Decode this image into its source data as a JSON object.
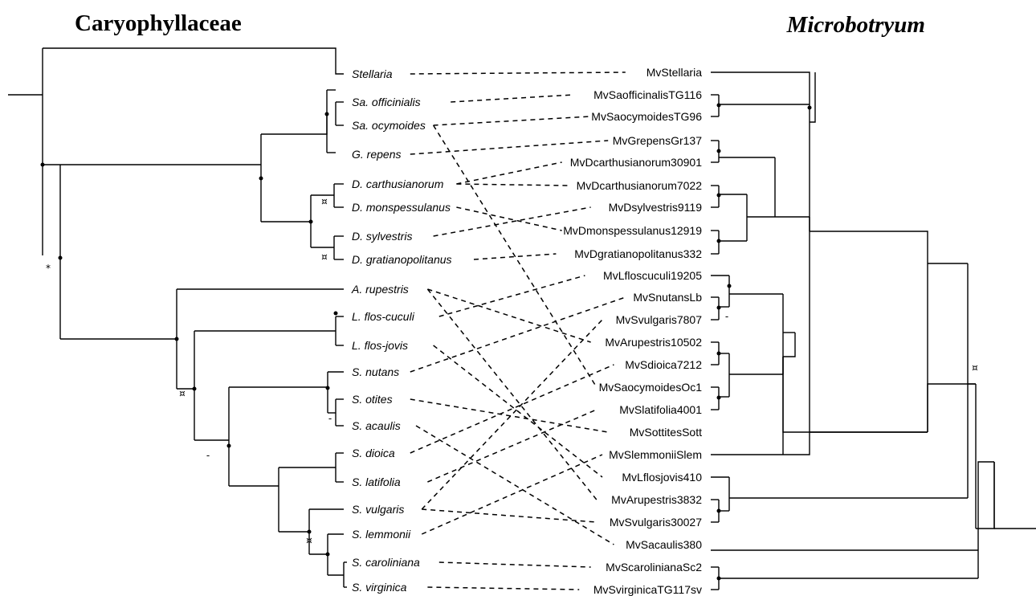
{
  "titles": {
    "left": "Caryophyllaceae",
    "right": "Microbotryum"
  },
  "host_taxa": [
    "Stellaria",
    "Sa. officinialis",
    "Sa. ocymoides",
    "G. repens",
    "D. carthusianorum",
    "D. monspessulanus",
    "D. sylvestris",
    "D. gratianopolitanus",
    "A. rupestris",
    "L. flos-cuculi",
    "L. flos-jovis",
    "S. nutans",
    "S. otites",
    "S. acaulis",
    "S. dioica",
    "S. latifolia",
    "S. vulgaris",
    "S. lemmonii",
    "S. caroliniana",
    "S. virginica"
  ],
  "parasite_taxa": [
    "MvStellaria",
    "MvSaofficinalisTG116",
    "MvSaocymoidesTG96",
    "MvGrepensGr137",
    "MvDcarthusianorum30901",
    "MvDcarthusianorum7022",
    "MvDsylvestris9119",
    "MvDmonspessulanus12919",
    "MvDgratianopolitanus332",
    "MvLfloscuculi19205",
    "MvSnutansLb",
    "MvSvulgaris7807",
    "MvArupestris10502",
    "MvSdioica7212",
    "MvSaocymoidesOc1",
    "MvSlatifolia4001",
    "MvSottitesSott",
    "MvSlemmoniiSlem",
    "MvLflosjovis410",
    "MvArupestris3832",
    "MvSvulgaris30027",
    "MvSacaulis380",
    "MvScarolinianaSc2",
    "MvSvirginicaTG117sv"
  ],
  "associations": [
    [
      "Stellaria",
      "MvStellaria"
    ],
    [
      "Sa. officinialis",
      "MvSaofficinalisTG116"
    ],
    [
      "Sa. ocymoides",
      "MvSaocymoidesTG96"
    ],
    [
      "Sa. ocymoides",
      "MvSaocymoidesOc1"
    ],
    [
      "G. repens",
      "MvGrepensGr137"
    ],
    [
      "D. carthusianorum",
      "MvDcarthusianorum30901"
    ],
    [
      "D. carthusianorum",
      "MvDcarthusianorum7022"
    ],
    [
      "D. monspessulanus",
      "MvDmonspessulanus12919"
    ],
    [
      "D. sylvestris",
      "MvDsylvestris9119"
    ],
    [
      "D. gratianopolitanus",
      "MvDgratianopolitanus332"
    ],
    [
      "A. rupestris",
      "MvArupestris10502"
    ],
    [
      "A. rupestris",
      "MvArupestris3832"
    ],
    [
      "L. flos-cuculi",
      "MvLfloscuculi19205"
    ],
    [
      "L. flos-jovis",
      "MvLflosjovis410"
    ],
    [
      "S. nutans",
      "MvSnutansLb"
    ],
    [
      "S. otites",
      "MvSottitesSott"
    ],
    [
      "S. acaulis",
      "MvSacaulis380"
    ],
    [
      "S. dioica",
      "MvSdioica7212"
    ],
    [
      "S. latifolia",
      "MvSlatifolia4001"
    ],
    [
      "S. vulgaris",
      "MvSvulgaris7807"
    ],
    [
      "S. vulgaris",
      "MvSvulgaris30027"
    ],
    [
      "S. lemmonii",
      "MvSlemmoniiSlem"
    ],
    [
      "S. caroliniana",
      "MvScarolinianaSc2"
    ],
    [
      "S. virginica",
      "MvSvirginicaTG117sv"
    ]
  ],
  "support_marks": {
    "star": "*",
    "currency": "¤",
    "dash": "-"
  }
}
